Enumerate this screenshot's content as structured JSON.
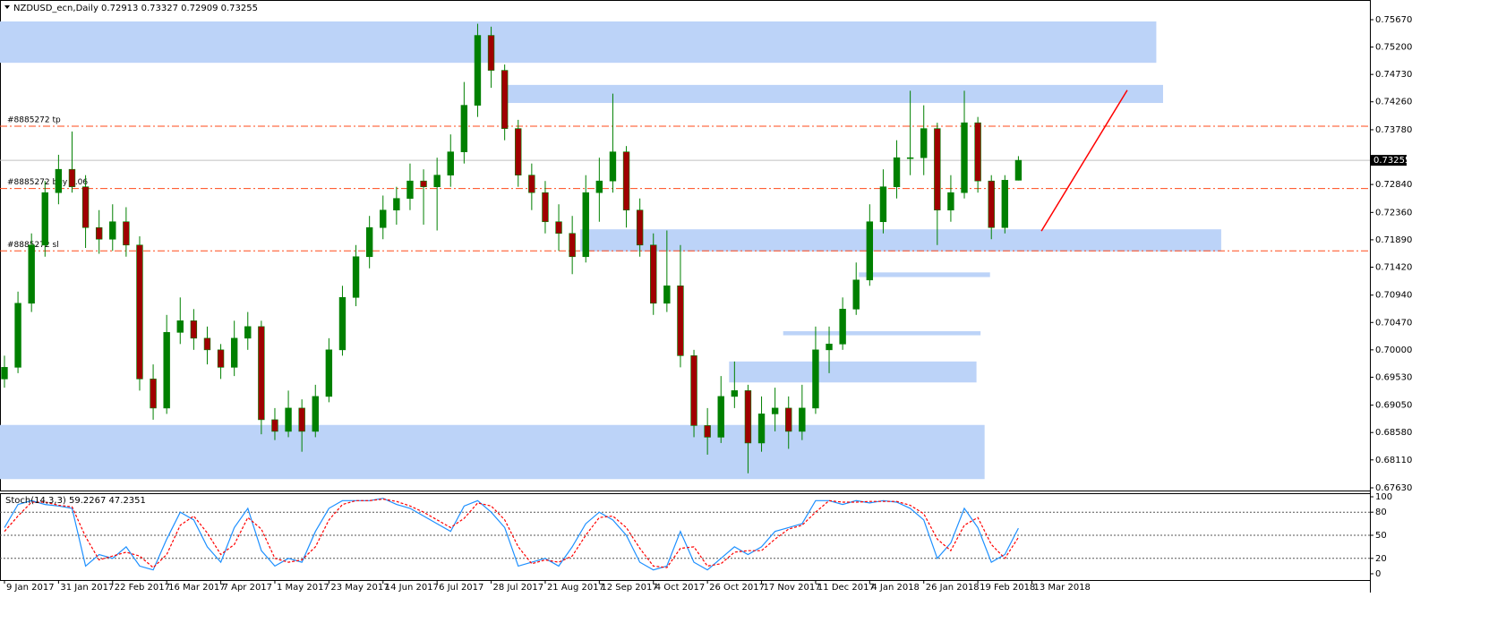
{
  "chart_data": [
    {
      "type": "candlestick",
      "title": "NZDUSD_ecn,Daily  0.72913 0.73327 0.72909 0.73255",
      "open": [
        0.695,
        0.697,
        0.708,
        0.718,
        0.727,
        0.731,
        0.728,
        0.721,
        0.719,
        0.722,
        0.718,
        0.695,
        0.69,
        0.703,
        0.705,
        0.702,
        0.7,
        0.697,
        0.702,
        0.704,
        0.688,
        0.686,
        0.69,
        0.686,
        0.692,
        0.7,
        0.709,
        0.716,
        0.721,
        0.724,
        0.726,
        0.729,
        0.728,
        0.73,
        0.734,
        0.742,
        0.754,
        0.748,
        0.738,
        0.73,
        0.727,
        0.722,
        0.72,
        0.716,
        0.727,
        0.729,
        0.734,
        0.724,
        0.718,
        0.708,
        0.711,
        0.699,
        0.687,
        0.685,
        0.692,
        0.693,
        0.684,
        0.689,
        0.69,
        0.686,
        0.69,
        0.7,
        0.701,
        0.707,
        0.712,
        0.722,
        0.728,
        0.733,
        0.733,
        0.738,
        0.724,
        0.727,
        0.739,
        0.729,
        0.721,
        0.72913
      ],
      "high": [
        0.699,
        0.71,
        0.72,
        0.729,
        0.7335,
        0.7375,
        0.73,
        0.724,
        0.725,
        0.7245,
        0.7195,
        0.6975,
        0.706,
        0.709,
        0.707,
        0.704,
        0.701,
        0.705,
        0.7065,
        0.705,
        0.69,
        0.693,
        0.6915,
        0.694,
        0.702,
        0.711,
        0.718,
        0.723,
        0.7265,
        0.728,
        0.732,
        0.731,
        0.733,
        0.737,
        0.746,
        0.756,
        0.7555,
        0.749,
        0.7395,
        0.732,
        0.729,
        0.725,
        0.723,
        0.73,
        0.733,
        0.744,
        0.735,
        0.726,
        0.72,
        0.7205,
        0.718,
        0.7,
        0.69,
        0.6955,
        0.698,
        0.694,
        0.692,
        0.6935,
        0.692,
        0.694,
        0.704,
        0.704,
        0.709,
        0.715,
        0.725,
        0.731,
        0.736,
        0.7445,
        0.742,
        0.739,
        0.73,
        0.7445,
        0.74,
        0.73,
        0.73,
        0.73327
      ],
      "low": [
        0.6935,
        0.696,
        0.7065,
        0.716,
        0.725,
        0.727,
        0.7175,
        0.7165,
        0.717,
        0.716,
        0.693,
        0.688,
        0.689,
        0.701,
        0.7,
        0.6975,
        0.695,
        0.6955,
        0.7,
        0.6855,
        0.6845,
        0.685,
        0.6825,
        0.685,
        0.691,
        0.699,
        0.7075,
        0.714,
        0.719,
        0.7215,
        0.724,
        0.7215,
        0.7205,
        0.728,
        0.732,
        0.74,
        0.745,
        0.736,
        0.728,
        0.724,
        0.72,
        0.717,
        0.713,
        0.715,
        0.722,
        0.727,
        0.721,
        0.716,
        0.706,
        0.7065,
        0.697,
        0.685,
        0.682,
        0.684,
        0.69,
        0.6788,
        0.6825,
        0.686,
        0.683,
        0.6845,
        0.689,
        0.696,
        0.7,
        0.706,
        0.711,
        0.72,
        0.726,
        0.73,
        0.73,
        0.718,
        0.722,
        0.726,
        0.727,
        0.719,
        0.72,
        0.72909
      ],
      "close": [
        0.697,
        0.708,
        0.718,
        0.727,
        0.731,
        0.728,
        0.721,
        0.719,
        0.722,
        0.718,
        0.695,
        0.69,
        0.703,
        0.705,
        0.702,
        0.7,
        0.697,
        0.702,
        0.704,
        0.688,
        0.686,
        0.69,
        0.686,
        0.692,
        0.7,
        0.709,
        0.716,
        0.721,
        0.724,
        0.726,
        0.729,
        0.728,
        0.73,
        0.734,
        0.742,
        0.754,
        0.748,
        0.738,
        0.73,
        0.727,
        0.722,
        0.72,
        0.716,
        0.727,
        0.729,
        0.734,
        0.724,
        0.718,
        0.708,
        0.711,
        0.699,
        0.687,
        0.685,
        0.692,
        0.693,
        0.684,
        0.689,
        0.69,
        0.686,
        0.69,
        0.7,
        0.701,
        0.707,
        0.712,
        0.722,
        0.728,
        0.733,
        0.733,
        0.738,
        0.724,
        0.727,
        0.739,
        0.729,
        0.721,
        0.72913,
        0.73255
      ],
      "bull_color": "#008000",
      "bear_color": "#a00000",
      "xlim": [
        -0.33,
        101
      ],
      "ylim": [
        0.67584,
        0.75993
      ],
      "yticks": [
        {
          "value": 0.7567,
          "label": "0.75670"
        },
        {
          "value": 0.752,
          "label": "0.75200"
        },
        {
          "value": 0.7473,
          "label": "0.74730"
        },
        {
          "value": 0.7426,
          "label": "0.74260"
        },
        {
          "value": 0.7378,
          "label": "0.73780"
        },
        {
          "value": 0.7284,
          "label": "0.72840"
        },
        {
          "value": 0.7236,
          "label": "0.72360"
        },
        {
          "value": 0.7189,
          "label": "0.71890"
        },
        {
          "value": 0.7142,
          "label": "0.71420"
        },
        {
          "value": 0.7094,
          "label": "0.70940"
        },
        {
          "value": 0.7047,
          "label": "0.70470"
        },
        {
          "value": 0.7,
          "label": "0.70000"
        },
        {
          "value": 0.6953,
          "label": "0.69530"
        },
        {
          "value": 0.6905,
          "label": "0.69050"
        },
        {
          "value": 0.6858,
          "label": "0.68580"
        },
        {
          "value": 0.6811,
          "label": "0.68110"
        },
        {
          "value": 0.6763,
          "label": "0.67630"
        }
      ],
      "current_price": 0.73255,
      "zone_color": "#bcd3f8",
      "zones": [
        {
          "low": 0.7493,
          "high": 0.7564,
          "from": -0.33,
          "to": 85.2
        },
        {
          "low": 0.7424,
          "high": 0.7455,
          "from": 36.75,
          "to": 85.7
        },
        {
          "low": 0.7169,
          "high": 0.7207,
          "from": 42.6,
          "to": 90
        },
        {
          "low": 0.7125,
          "high": 0.7133,
          "from": 63.2,
          "to": 72.9
        },
        {
          "low": 0.7025,
          "high": 0.7032,
          "from": 57.6,
          "to": 72.2
        },
        {
          "low": 0.6944,
          "high": 0.698,
          "from": 53.6,
          "to": 71.9
        },
        {
          "low": 0.6778,
          "high": 0.6871,
          "from": -0.33,
          "to": 72.5
        }
      ],
      "level_color": "#ff4a1a",
      "levels": [
        {
          "label": "#8885272 tp",
          "value": 0.7384
        },
        {
          "label": "#8885272 buy 0.06",
          "value": 0.7277
        },
        {
          "label": "#8885272 sl",
          "value": 0.717
        }
      ],
      "trend_line": {
        "color": "#ff0000",
        "x": [
          76.7,
          83.05
        ],
        "y": [
          0.7204,
          0.7446
        ]
      }
    },
    {
      "type": "line",
      "title": "Stoch(14,3,3) 59.2267 47.2351",
      "xlim": [
        -0.33,
        101
      ],
      "ylim": [
        0,
        100
      ],
      "yticks": [
        0,
        20,
        50,
        80,
        100
      ],
      "levels": [
        20,
        50,
        80
      ],
      "xticks": [
        {
          "value": 0,
          "label": "9 Jan 2017"
        },
        {
          "value": 4,
          "label": "31 Jan 2017"
        },
        {
          "value": 8,
          "label": "22 Feb 2017"
        },
        {
          "value": 12,
          "label": "16 Mar 2017"
        },
        {
          "value": 16,
          "label": "7 Apr 2017"
        },
        {
          "value": 20,
          "label": "1 May 2017"
        },
        {
          "value": 24,
          "label": "23 May 2017"
        },
        {
          "value": 28,
          "label": "14 Jun 2017"
        },
        {
          "value": 32,
          "label": "6 Jul 2017"
        },
        {
          "value": 36,
          "label": "28 Jul 2017"
        },
        {
          "value": 40,
          "label": "21 Aug 2017"
        },
        {
          "value": 44,
          "label": "12 Sep 2017"
        },
        {
          "value": 48,
          "label": "4 Oct 2017"
        },
        {
          "value": 52,
          "label": "26 Oct 2017"
        },
        {
          "value": 56,
          "label": "17 Nov 2017"
        },
        {
          "value": 60,
          "label": "11 Dec 2017"
        },
        {
          "value": 64,
          "label": "4 Jan 2018"
        },
        {
          "value": 68,
          "label": "26 Jan 2018"
        },
        {
          "value": 72,
          "label": "19 Feb 2018"
        },
        {
          "value": 76,
          "label": "13 Mar 2018"
        }
      ],
      "series": [
        {
          "color": "#1e90ff",
          "values": [
            60,
            90,
            95,
            90,
            88,
            85,
            10,
            25,
            20,
            35,
            10,
            5,
            45,
            80,
            70,
            35,
            15,
            60,
            85,
            30,
            10,
            20,
            15,
            55,
            85,
            95,
            95,
            95,
            98,
            90,
            85,
            75,
            65,
            55,
            88,
            95,
            80,
            60,
            10,
            15,
            20,
            10,
            35,
            65,
            80,
            70,
            50,
            15,
            5,
            10,
            55,
            15,
            5,
            20,
            35,
            25,
            35,
            55,
            60,
            65,
            95,
            95,
            90,
            95,
            92,
            95,
            93,
            85,
            70,
            20,
            40,
            85,
            60,
            15,
            25,
            59.2267
          ]
        },
        {
          "color": "#ff0000",
          "dashed": true,
          "values": [
            55,
            75,
            93,
            93,
            89,
            87,
            48,
            18,
            23,
            28,
            23,
            8,
            25,
            63,
            75,
            53,
            25,
            38,
            73,
            58,
            20,
            15,
            18,
            35,
            70,
            90,
            95,
            95,
            97,
            94,
            88,
            80,
            70,
            60,
            72,
            92,
            88,
            70,
            35,
            13,
            18,
            15,
            23,
            50,
            73,
            75,
            60,
            33,
            10,
            8,
            33,
            35,
            10,
            13,
            28,
            30,
            30,
            45,
            58,
            63,
            80,
            95,
            93,
            93,
            94,
            94,
            94,
            89,
            78,
            45,
            30,
            63,
            73,
            38,
            20,
            47.2351
          ]
        }
      ]
    }
  ]
}
